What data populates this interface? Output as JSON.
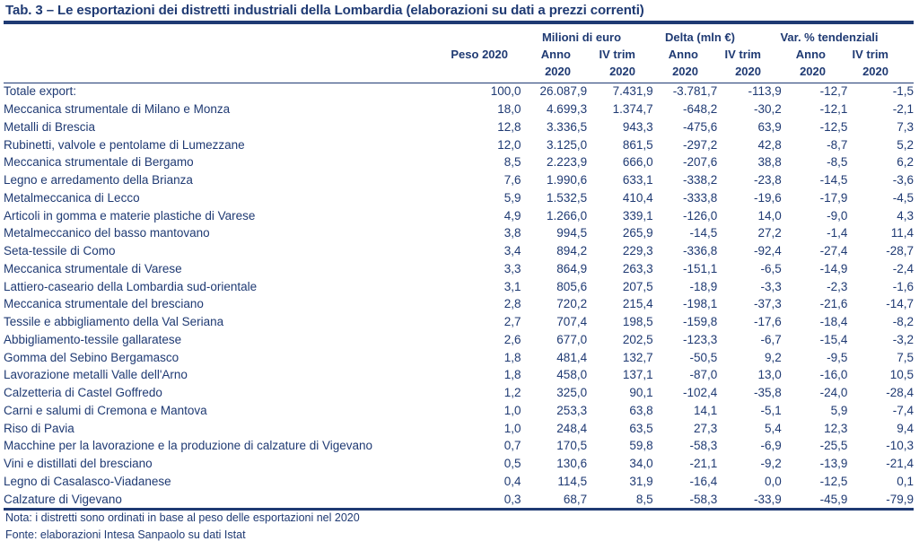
{
  "title": "Tab. 3 – Le esportazioni dei distretti industriali della Lombardia (elaborazioni su dati a prezzi correnti)",
  "header": {
    "group_milioni": "Milioni di euro",
    "group_delta": "Delta (mln €)",
    "group_var": "Var. % tendenziali",
    "peso": "Peso 2020",
    "anno": "Anno",
    "ivtrim": "IV trim",
    "year": "2020"
  },
  "rows": [
    {
      "name": "Totale export:",
      "peso": "100,0",
      "mil_anno": "26.087,9",
      "mil_iv": "7.431,9",
      "delta_anno": "-3.781,7",
      "delta_iv": "-113,9",
      "var_anno": "-12,7",
      "var_iv": "-1,5"
    },
    {
      "name": "Meccanica strumentale di Milano e Monza",
      "peso": "18,0",
      "mil_anno": "4.699,3",
      "mil_iv": "1.374,7",
      "delta_anno": "-648,2",
      "delta_iv": "-30,2",
      "var_anno": "-12,1",
      "var_iv": "-2,1"
    },
    {
      "name": "Metalli di Brescia",
      "peso": "12,8",
      "mil_anno": "3.336,5",
      "mil_iv": "943,3",
      "delta_anno": "-475,6",
      "delta_iv": "63,9",
      "var_anno": "-12,5",
      "var_iv": "7,3"
    },
    {
      "name": "Rubinetti, valvole e pentolame di Lumezzane",
      "peso": "12,0",
      "mil_anno": "3.125,0",
      "mil_iv": "861,5",
      "delta_anno": "-297,2",
      "delta_iv": "42,8",
      "var_anno": "-8,7",
      "var_iv": "5,2"
    },
    {
      "name": "Meccanica strumentale di Bergamo",
      "peso": "8,5",
      "mil_anno": "2.223,9",
      "mil_iv": "666,0",
      "delta_anno": "-207,6",
      "delta_iv": "38,8",
      "var_anno": "-8,5",
      "var_iv": "6,2"
    },
    {
      "name": "Legno e arredamento della Brianza",
      "peso": "7,6",
      "mil_anno": "1.990,6",
      "mil_iv": "633,1",
      "delta_anno": "-338,2",
      "delta_iv": "-23,8",
      "var_anno": "-14,5",
      "var_iv": "-3,6"
    },
    {
      "name": "Metalmeccanica di Lecco",
      "peso": "5,9",
      "mil_anno": "1.532,5",
      "mil_iv": "410,4",
      "delta_anno": "-333,8",
      "delta_iv": "-19,6",
      "var_anno": "-17,9",
      "var_iv": "-4,5"
    },
    {
      "name": "Articoli in gomma e materie plastiche di Varese",
      "peso": "4,9",
      "mil_anno": "1.266,0",
      "mil_iv": "339,1",
      "delta_anno": "-126,0",
      "delta_iv": "14,0",
      "var_anno": "-9,0",
      "var_iv": "4,3"
    },
    {
      "name": "Metalmeccanico del basso mantovano",
      "peso": "3,8",
      "mil_anno": "994,5",
      "mil_iv": "265,9",
      "delta_anno": "-14,5",
      "delta_iv": "27,2",
      "var_anno": "-1,4",
      "var_iv": "11,4"
    },
    {
      "name": "Seta-tessile di Como",
      "peso": "3,4",
      "mil_anno": "894,2",
      "mil_iv": "229,3",
      "delta_anno": "-336,8",
      "delta_iv": "-92,4",
      "var_anno": "-27,4",
      "var_iv": "-28,7"
    },
    {
      "name": "Meccanica strumentale di Varese",
      "peso": "3,3",
      "mil_anno": "864,9",
      "mil_iv": "263,3",
      "delta_anno": "-151,1",
      "delta_iv": "-6,5",
      "var_anno": "-14,9",
      "var_iv": "-2,4"
    },
    {
      "name": "Lattiero-caseario della Lombardia sud-orientale",
      "peso": "3,1",
      "mil_anno": "805,6",
      "mil_iv": "207,5",
      "delta_anno": "-18,9",
      "delta_iv": "-3,3",
      "var_anno": "-2,3",
      "var_iv": "-1,6"
    },
    {
      "name": "Meccanica strumentale del bresciano",
      "peso": "2,8",
      "mil_anno": "720,2",
      "mil_iv": "215,4",
      "delta_anno": "-198,1",
      "delta_iv": "-37,3",
      "var_anno": "-21,6",
      "var_iv": "-14,7"
    },
    {
      "name": "Tessile e abbigliamento della Val Seriana",
      "peso": "2,7",
      "mil_anno": "707,4",
      "mil_iv": "198,5",
      "delta_anno": "-159,8",
      "delta_iv": "-17,6",
      "var_anno": "-18,4",
      "var_iv": "-8,2"
    },
    {
      "name": "Abbigliamento-tessile gallaratese",
      "peso": "2,6",
      "mil_anno": "677,0",
      "mil_iv": "202,5",
      "delta_anno": "-123,3",
      "delta_iv": "-6,7",
      "var_anno": "-15,4",
      "var_iv": "-3,2"
    },
    {
      "name": "Gomma del Sebino Bergamasco",
      "peso": "1,8",
      "mil_anno": "481,4",
      "mil_iv": "132,7",
      "delta_anno": "-50,5",
      "delta_iv": "9,2",
      "var_anno": "-9,5",
      "var_iv": "7,5"
    },
    {
      "name": "Lavorazione metalli Valle dell'Arno",
      "peso": "1,8",
      "mil_anno": "458,0",
      "mil_iv": "137,1",
      "delta_anno": "-87,0",
      "delta_iv": "13,0",
      "var_anno": "-16,0",
      "var_iv": "10,5"
    },
    {
      "name": "Calzetteria di Castel Goffredo",
      "peso": "1,2",
      "mil_anno": "325,0",
      "mil_iv": "90,1",
      "delta_anno": "-102,4",
      "delta_iv": "-35,8",
      "var_anno": "-24,0",
      "var_iv": "-28,4"
    },
    {
      "name": "Carni e salumi di Cremona e Mantova",
      "peso": "1,0",
      "mil_anno": "253,3",
      "mil_iv": "63,8",
      "delta_anno": "14,1",
      "delta_iv": "-5,1",
      "var_anno": "5,9",
      "var_iv": "-7,4"
    },
    {
      "name": "Riso di Pavia",
      "peso": "1,0",
      "mil_anno": "248,4",
      "mil_iv": "63,5",
      "delta_anno": "27,3",
      "delta_iv": "5,4",
      "var_anno": "12,3",
      "var_iv": "9,4"
    },
    {
      "name": "Macchine per la lavorazione e la produzione di calzature di Vigevano",
      "peso": "0,7",
      "mil_anno": "170,5",
      "mil_iv": "59,8",
      "delta_anno": "-58,3",
      "delta_iv": "-6,9",
      "var_anno": "-25,5",
      "var_iv": "-10,3"
    },
    {
      "name": "Vini e distillati del bresciano",
      "peso": "0,5",
      "mil_anno": "130,6",
      "mil_iv": "34,0",
      "delta_anno": "-21,1",
      "delta_iv": "-9,2",
      "var_anno": "-13,9",
      "var_iv": "-21,4"
    },
    {
      "name": "Legno di Casalasco-Viadanese",
      "peso": "0,4",
      "mil_anno": "114,5",
      "mil_iv": "31,9",
      "delta_anno": "-16,4",
      "delta_iv": "0,0",
      "var_anno": "-12,5",
      "var_iv": "0,1"
    },
    {
      "name": "Calzature di Vigevano",
      "peso": "0,3",
      "mil_anno": "68,7",
      "mil_iv": "8,5",
      "delta_anno": "-58,3",
      "delta_iv": "-33,9",
      "var_anno": "-45,9",
      "var_iv": "-79,9"
    }
  ],
  "footnotes": {
    "nota": "Nota: i distretti sono ordinati in base al peso delle esportazioni nel 2020",
    "fonte": "Fonte: elaborazioni Intesa Sanpaolo su dati Istat"
  }
}
